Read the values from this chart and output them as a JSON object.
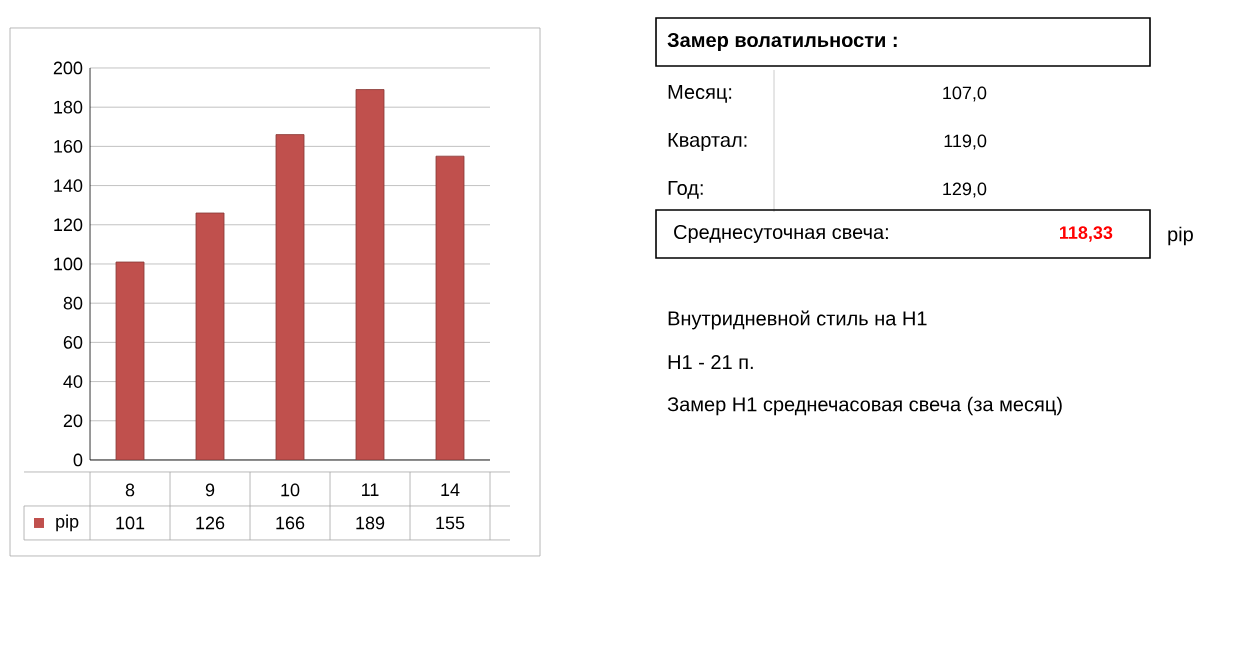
{
  "chart_data": {
    "type": "bar",
    "categories": [
      "8",
      "9",
      "10",
      "11",
      "14"
    ],
    "series": [
      {
        "name": "pip",
        "color": "#c0504d",
        "values": [
          101,
          126,
          166,
          189,
          155
        ]
      }
    ],
    "ylim": [
      0,
      200
    ],
    "yticks": [
      0,
      20,
      40,
      60,
      80,
      100,
      120,
      140,
      160,
      180,
      200
    ],
    "grid": "y",
    "data_labels": true,
    "legend": "bottom",
    "annotations": [
      "Замер  волатильности  :",
      "Месяц:",
      "107,0",
      "Квартал:",
      "119,0",
      "Год:",
      "129,0",
      "Среднесуточная свеча:",
      "118,33",
      "pip",
      "Внутридневной стиль на Н1",
      "Н1 - 21 п.",
      "Замер Н1 среднечасовая свеча (за месяц)"
    ]
  }
}
